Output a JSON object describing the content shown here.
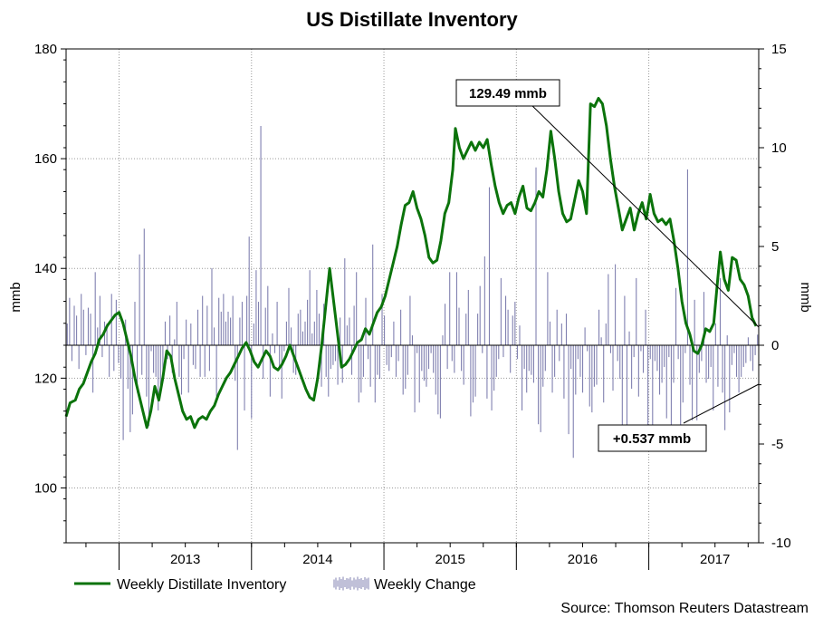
{
  "chart_data": {
    "type": "line",
    "title": "US Distillate Inventory",
    "ylabel_left": "mmb",
    "ylabel_right": "mmb",
    "source": "Source: Thomson Reuters Datastream",
    "x_range": [
      2012.6,
      2017.83
    ],
    "x_tick_labels": [
      "2013",
      "2014",
      "2015",
      "2016",
      "2017"
    ],
    "ylim_left": [
      90,
      180
    ],
    "yticks_left": [
      100,
      120,
      140,
      160,
      180
    ],
    "ylim_right": [
      -10,
      15
    ],
    "yticks_right": [
      -10,
      -5,
      0,
      5,
      10,
      15
    ],
    "grid": true,
    "legend_position": "bottom-left",
    "series": [
      {
        "name": "Weekly Distillate Inventory",
        "axis": "left",
        "color": "#0b730b",
        "points": [
          [
            2012.6,
            113.0
          ],
          [
            2012.63,
            115.5
          ],
          [
            2012.67,
            116.0
          ],
          [
            2012.7,
            118.0
          ],
          [
            2012.73,
            119.0
          ],
          [
            2012.76,
            121.0
          ],
          [
            2012.79,
            123.0
          ],
          [
            2012.82,
            124.5
          ],
          [
            2012.85,
            127.0
          ],
          [
            2012.88,
            128.0
          ],
          [
            2012.91,
            129.5
          ],
          [
            2012.94,
            130.5
          ],
          [
            2012.97,
            131.5
          ],
          [
            2013.0,
            132.0
          ],
          [
            2013.03,
            130.0
          ],
          [
            2013.06,
            127.0
          ],
          [
            2013.09,
            124.0
          ],
          [
            2013.12,
            120.0
          ],
          [
            2013.15,
            117.0
          ],
          [
            2013.18,
            114.0
          ],
          [
            2013.21,
            111.0
          ],
          [
            2013.24,
            114.0
          ],
          [
            2013.27,
            118.5
          ],
          [
            2013.3,
            116.0
          ],
          [
            2013.33,
            120.0
          ],
          [
            2013.36,
            125.0
          ],
          [
            2013.39,
            124.0
          ],
          [
            2013.42,
            120.0
          ],
          [
            2013.45,
            117.0
          ],
          [
            2013.48,
            114.0
          ],
          [
            2013.51,
            112.5
          ],
          [
            2013.54,
            113.0
          ],
          [
            2013.57,
            111.0
          ],
          [
            2013.6,
            112.5
          ],
          [
            2013.63,
            113.0
          ],
          [
            2013.66,
            112.5
          ],
          [
            2013.69,
            114.0
          ],
          [
            2013.72,
            115.0
          ],
          [
            2013.75,
            117.0
          ],
          [
            2013.78,
            118.5
          ],
          [
            2013.81,
            120.0
          ],
          [
            2013.84,
            121.0
          ],
          [
            2013.87,
            122.5
          ],
          [
            2013.9,
            124.0
          ],
          [
            2013.93,
            125.5
          ],
          [
            2013.96,
            126.5
          ],
          [
            2013.99,
            125.0
          ],
          [
            2014.02,
            123.0
          ],
          [
            2014.05,
            122.0
          ],
          [
            2014.08,
            123.5
          ],
          [
            2014.11,
            125.0
          ],
          [
            2014.14,
            124.0
          ],
          [
            2014.17,
            122.0
          ],
          [
            2014.2,
            121.5
          ],
          [
            2014.23,
            122.5
          ],
          [
            2014.26,
            124.0
          ],
          [
            2014.29,
            126.0
          ],
          [
            2014.32,
            124.0
          ],
          [
            2014.35,
            122.0
          ],
          [
            2014.38,
            120.0
          ],
          [
            2014.41,
            118.0
          ],
          [
            2014.44,
            116.5
          ],
          [
            2014.47,
            116.0
          ],
          [
            2014.5,
            120.0
          ],
          [
            2014.53,
            126.0
          ],
          [
            2014.56,
            133.0
          ],
          [
            2014.59,
            140.0
          ],
          [
            2014.62,
            134.0
          ],
          [
            2014.65,
            128.0
          ],
          [
            2014.68,
            122.0
          ],
          [
            2014.71,
            122.5
          ],
          [
            2014.74,
            123.5
          ],
          [
            2014.77,
            125.0
          ],
          [
            2014.8,
            126.5
          ],
          [
            2014.83,
            127.0
          ],
          [
            2014.86,
            129.0
          ],
          [
            2014.89,
            128.0
          ],
          [
            2014.92,
            130.0
          ],
          [
            2014.95,
            132.0
          ],
          [
            2014.98,
            133.0
          ],
          [
            2015.01,
            135.0
          ],
          [
            2015.04,
            138.0
          ],
          [
            2015.07,
            141.0
          ],
          [
            2015.1,
            144.0
          ],
          [
            2015.13,
            148.0
          ],
          [
            2015.16,
            151.5
          ],
          [
            2015.19,
            152.0
          ],
          [
            2015.22,
            154.0
          ],
          [
            2015.25,
            151.0
          ],
          [
            2015.28,
            149.0
          ],
          [
            2015.31,
            146.0
          ],
          [
            2015.34,
            142.0
          ],
          [
            2015.37,
            141.0
          ],
          [
            2015.4,
            141.5
          ],
          [
            2015.43,
            145.0
          ],
          [
            2015.46,
            150.0
          ],
          [
            2015.49,
            152.0
          ],
          [
            2015.52,
            158.0
          ],
          [
            2015.54,
            165.5
          ],
          [
            2015.57,
            162.0
          ],
          [
            2015.6,
            160.0
          ],
          [
            2015.63,
            161.5
          ],
          [
            2015.66,
            163.0
          ],
          [
            2015.69,
            161.5
          ],
          [
            2015.72,
            163.0
          ],
          [
            2015.75,
            162.0
          ],
          [
            2015.78,
            163.5
          ],
          [
            2015.81,
            159.0
          ],
          [
            2015.84,
            155.0
          ],
          [
            2015.87,
            152.0
          ],
          [
            2015.9,
            150.0
          ],
          [
            2015.93,
            151.5
          ],
          [
            2015.96,
            152.0
          ],
          [
            2015.99,
            150.0
          ],
          [
            2016.02,
            153.0
          ],
          [
            2016.05,
            155.0
          ],
          [
            2016.08,
            151.0
          ],
          [
            2016.11,
            150.5
          ],
          [
            2016.14,
            152.0
          ],
          [
            2016.17,
            154.0
          ],
          [
            2016.2,
            153.0
          ],
          [
            2016.23,
            158.0
          ],
          [
            2016.26,
            165.0
          ],
          [
            2016.29,
            160.0
          ],
          [
            2016.32,
            154.0
          ],
          [
            2016.35,
            150.0
          ],
          [
            2016.38,
            148.5
          ],
          [
            2016.41,
            149.0
          ],
          [
            2016.44,
            152.5
          ],
          [
            2016.47,
            156.0
          ],
          [
            2016.5,
            154.0
          ],
          [
            2016.53,
            150.0
          ],
          [
            2016.56,
            170.0
          ],
          [
            2016.59,
            169.5
          ],
          [
            2016.62,
            171.0
          ],
          [
            2016.65,
            170.0
          ],
          [
            2016.68,
            166.0
          ],
          [
            2016.71,
            160.0
          ],
          [
            2016.74,
            155.0
          ],
          [
            2016.77,
            151.0
          ],
          [
            2016.8,
            147.0
          ],
          [
            2016.83,
            149.0
          ],
          [
            2016.86,
            151.0
          ],
          [
            2016.89,
            147.0
          ],
          [
            2016.92,
            150.0
          ],
          [
            2016.95,
            152.0
          ],
          [
            2016.98,
            149.0
          ],
          [
            2017.01,
            153.5
          ],
          [
            2017.04,
            150.0
          ],
          [
            2017.07,
            148.5
          ],
          [
            2017.1,
            149.0
          ],
          [
            2017.13,
            148.0
          ],
          [
            2017.16,
            149.0
          ],
          [
            2017.19,
            145.0
          ],
          [
            2017.22,
            140.0
          ],
          [
            2017.25,
            134.0
          ],
          [
            2017.28,
            130.0
          ],
          [
            2017.31,
            128.0
          ],
          [
            2017.34,
            125.0
          ],
          [
            2017.37,
            124.5
          ],
          [
            2017.4,
            126.0
          ],
          [
            2017.43,
            129.0
          ],
          [
            2017.46,
            128.5
          ],
          [
            2017.49,
            130.0
          ],
          [
            2017.52,
            138.0
          ],
          [
            2017.54,
            143.0
          ],
          [
            2017.57,
            138.0
          ],
          [
            2017.6,
            136.0
          ],
          [
            2017.63,
            142.0
          ],
          [
            2017.66,
            141.5
          ],
          [
            2017.69,
            138.0
          ],
          [
            2017.72,
            137.0
          ],
          [
            2017.75,
            135.0
          ],
          [
            2017.78,
            131.0
          ],
          [
            2017.81,
            129.49
          ]
        ]
      },
      {
        "name": "Weekly Change",
        "axis": "right",
        "color": "#8080b0",
        "values": [
          1.1,
          2.4,
          -0.8,
          2.0,
          1.5,
          -1.2,
          2.6,
          1.8,
          -0.5,
          1.9,
          1.6,
          -2.4,
          3.7,
          0.9,
          2.5,
          -0.6,
          1.2,
          1.1,
          -1.6,
          2.6,
          -1.3,
          2.3,
          -0.9,
          -1.7,
          -4.8,
          1.3,
          -2.2,
          -4.4,
          -3.5,
          2.2,
          -2.4,
          4.6,
          -1.5,
          5.9,
          -2.6,
          -4.1,
          -0.3,
          -1.4,
          -1.6,
          -3.3,
          -2.0,
          -1.6,
          1.2,
          -0.7,
          1.5,
          -1.4,
          0.3,
          2.2,
          -1.6,
          -2.5,
          -0.7,
          1.3,
          -2.4,
          1.1,
          -1.0,
          -1.2,
          1.8,
          -1.6,
          2.5,
          -1.6,
          2.0,
          -1.3,
          3.9,
          0.9,
          -2.6,
          2.4,
          1.7,
          2.6,
          1.2,
          1.7,
          1.4,
          2.5,
          -1.8,
          -5.3,
          1.4,
          2.2,
          -3.3,
          2.5,
          5.5,
          -3.7,
          1.1,
          3.8,
          2.2,
          11.1,
          -1.7,
          1.9,
          3.0,
          -2.6,
          0.6,
          -0.4,
          2.2,
          -1.1,
          -2.7,
          -0.3,
          1.2,
          2.9,
          0.9,
          -1.4,
          -1.5,
          1.6,
          1.8,
          0.7,
          1.2,
          2.3,
          3.8,
          0.6,
          1.2,
          2.8,
          1.6,
          -2.1,
          2.1,
          -1.6,
          -2.6,
          -1.2,
          -1.0,
          -0.8,
          -2.0,
          1.4,
          -1.9,
          4.4,
          1.0,
          1.4,
          -1.5,
          2.0,
          3.7,
          -2.9,
          -2.4,
          -1.6,
          2.4,
          -0.7,
          -2.1,
          5.1,
          -2.9,
          -1.5,
          -1.7,
          2.6,
          1.5,
          -1.0,
          -1.3,
          -0.6,
          1.2,
          -1.6,
          -0.8,
          1.8,
          -2.5,
          -2.2,
          -1.5,
          2.5,
          0.5,
          -3.4,
          -0.4,
          -2.9,
          -1.3,
          -1.8,
          -2.1,
          -1.2,
          -0.4,
          -1.4,
          -2.5,
          -3.5,
          -3.7,
          0.5,
          2.1,
          -1.2,
          3.7,
          -0.8,
          -1.4,
          3.7,
          1.9,
          -1.3,
          -2.0,
          1.6,
          2.8,
          -3.6,
          -2.9,
          -2.6,
          1.6,
          3.0,
          -0.4,
          4.5,
          -2.7,
          8.0,
          -3.3,
          -2.3,
          -1.6,
          -0.7,
          3.4,
          -0.6,
          2.5,
          1.8,
          -1.4,
          1.5,
          2.2,
          -0.7,
          1.0,
          -3.3,
          -1.2,
          -2.4,
          -1.3,
          -1.5,
          -1.9,
          9.0,
          -4.0,
          -4.4,
          -2.1,
          -1.3,
          3.7,
          1.2,
          -2.4,
          -1.6,
          1.8,
          -0.8,
          1.1,
          -2.7,
          1.6,
          -4.5,
          -1.2,
          -5.7,
          -2.5,
          -0.7,
          -1.6,
          -2.4,
          0.9,
          -0.3,
          -3.1,
          -3.4,
          -2.1,
          -2.0,
          1.8,
          0.4,
          -2.9,
          1.1,
          3.6,
          -0.4,
          -2.3,
          4.1,
          -0.8,
          -1.7,
          -4.3,
          2.5,
          -4.9,
          0.7,
          -2.2,
          -0.6,
          3.4,
          -2.6,
          -0.3,
          -1.4,
          1.8,
          -4.2,
          -0.7,
          -4.7,
          -0.8,
          -1.3,
          -2.5,
          -1.9,
          -1.1,
          -3.7,
          -0.6,
          -4.4,
          -1.9,
          2.9,
          -0.7,
          -4.5,
          -2.9,
          -0.4,
          8.9,
          -2.0,
          -3.8,
          2.3,
          -3.8,
          -1.4,
          -0.8,
          2.7,
          -1.9,
          -1.7,
          -1.1,
          -3.3,
          1.1,
          -2.1,
          3.4,
          -2.4,
          -4.3,
          0.5,
          -3.4,
          -1.0,
          -0.4,
          -1.6,
          -2.4,
          -1.6,
          -1.1,
          -0.9,
          0.4,
          -0.8,
          -1.3,
          -0.5,
          0.537
        ]
      }
    ],
    "annotations": [
      {
        "text": "129.49 mmb"
      },
      {
        "text": "+0.537 mmb"
      }
    ]
  }
}
